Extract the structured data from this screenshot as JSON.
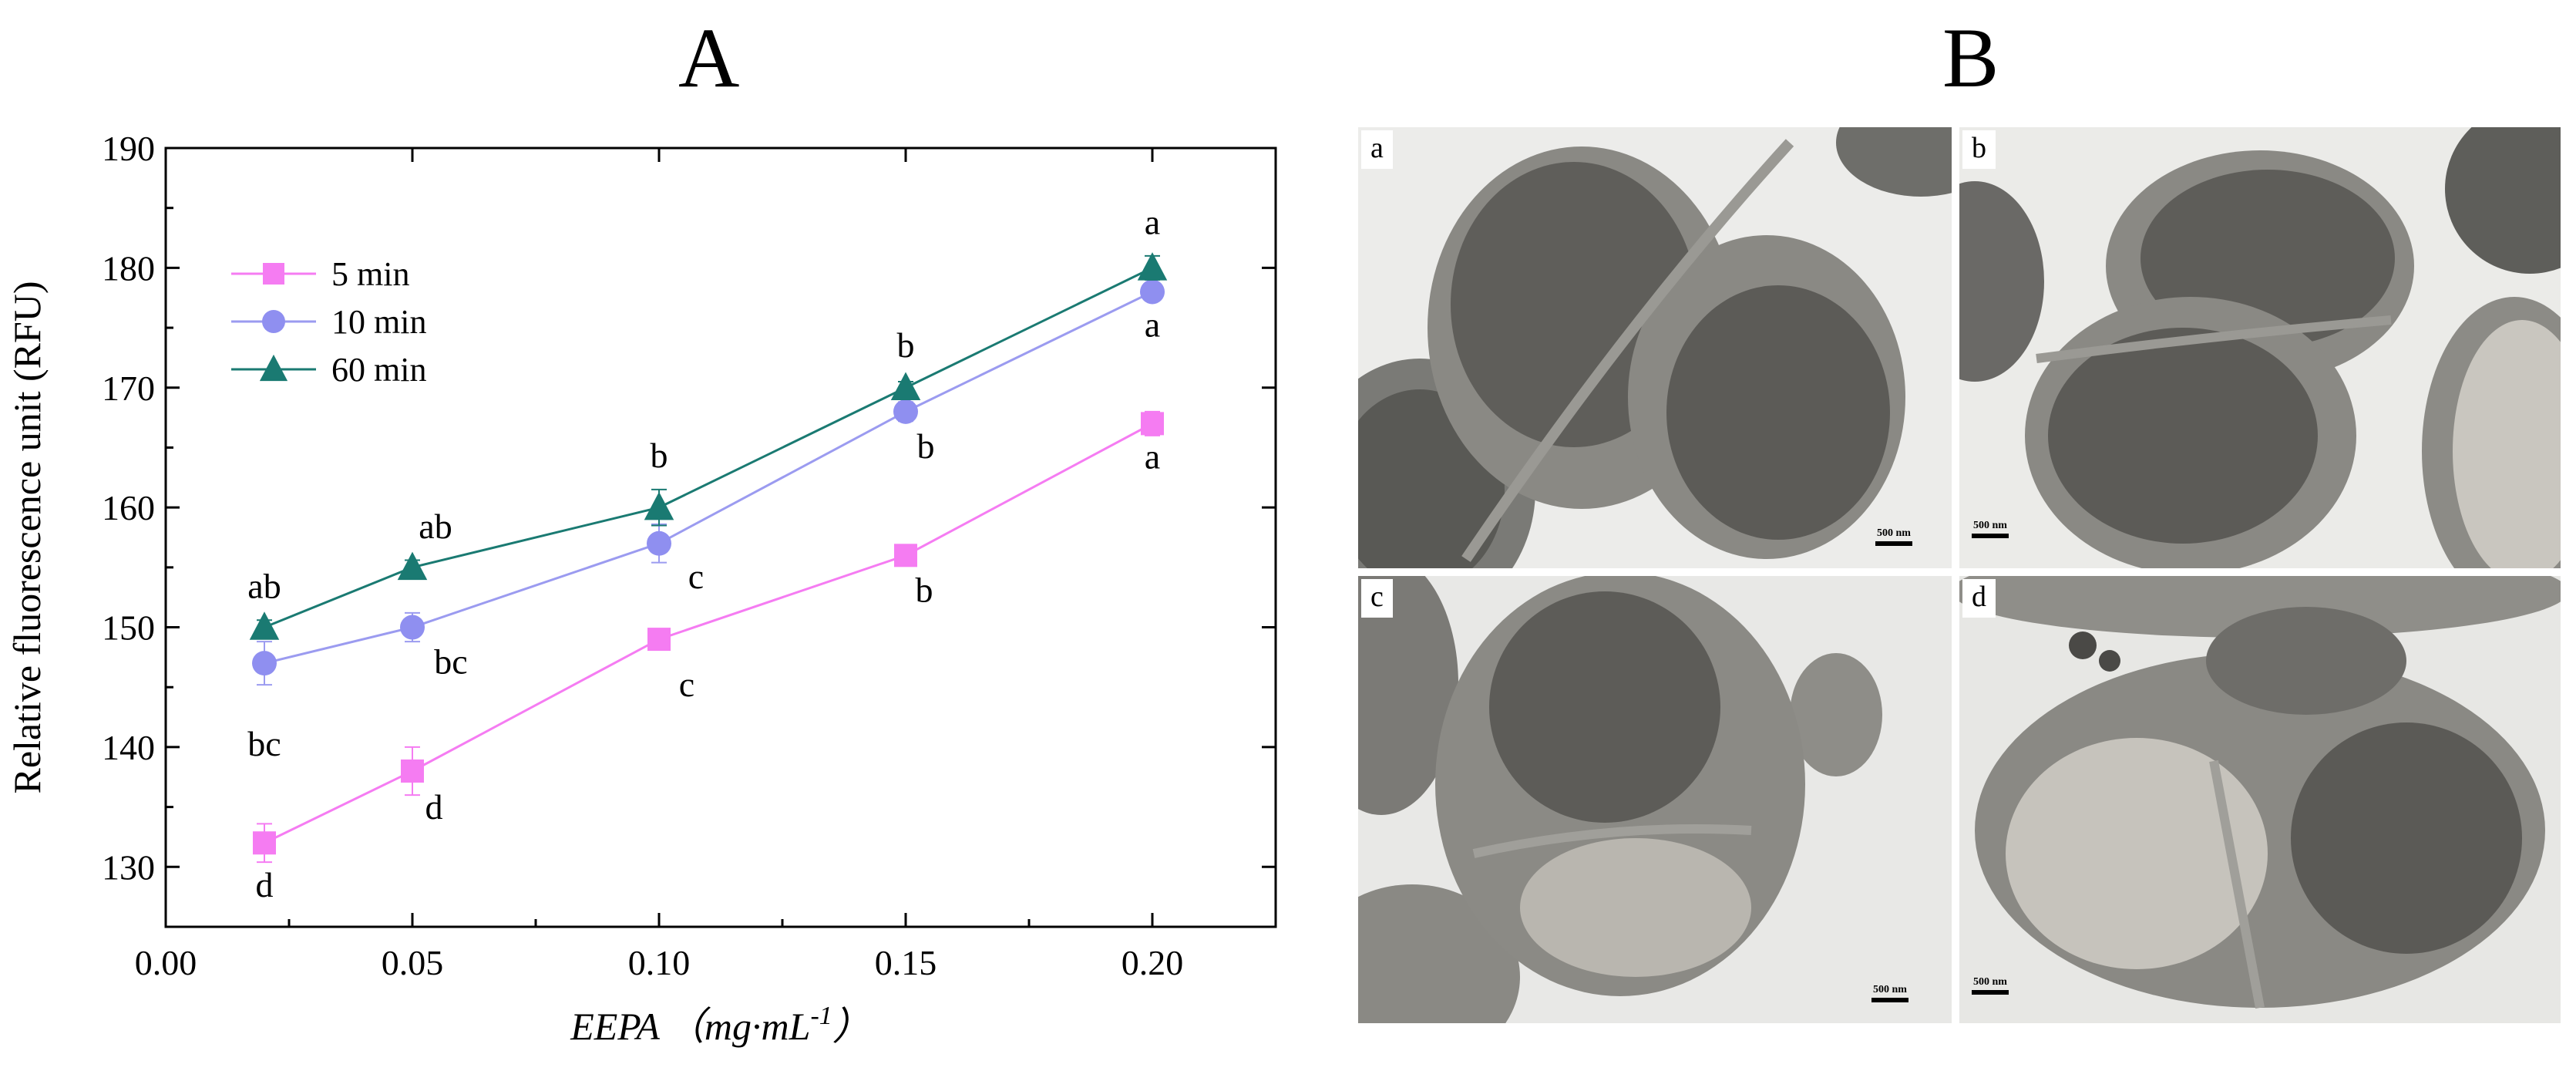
{
  "panels": {
    "left_letter": "A",
    "right_letter": "B"
  },
  "chart_data": {
    "type": "line",
    "xlabel_main": "EEPA",
    "xlabel_unit": "（mg·mL",
    "xlabel_exp": "-1",
    "xlabel_close": "）",
    "ylabel": "Relative fluorescence unit (RFU)",
    "xlim": [
      0.0,
      0.225
    ],
    "ylim": [
      125,
      190
    ],
    "xticks": [
      "0.00",
      "0.05",
      "0.10",
      "0.15",
      "0.20"
    ],
    "xtick_values": [
      0.0,
      0.05,
      0.1,
      0.15,
      0.2
    ],
    "yticks": [
      "130",
      "140",
      "150",
      "160",
      "170",
      "180",
      "190"
    ],
    "ytick_values": [
      130,
      140,
      150,
      160,
      170,
      180,
      190
    ],
    "x": [
      0.02,
      0.05,
      0.1,
      0.15,
      0.2
    ],
    "legend_position": "top-left",
    "series": [
      {
        "name": "5 min",
        "marker": "square",
        "color": "#f57cf2",
        "marker_color": "#f57cf2",
        "values": [
          132,
          138,
          149,
          156,
          167
        ],
        "errors": [
          1.6,
          2.0,
          0.6,
          0.5,
          1.0
        ],
        "letters": [
          "d",
          "d",
          "c",
          "b",
          "a"
        ],
        "letter_pos": [
          "below",
          "below",
          "below",
          "below",
          "below"
        ]
      },
      {
        "name": "10 min",
        "marker": "circle",
        "color": "#9b9bf0",
        "marker_color": "#8f8ff0",
        "values": [
          147,
          150,
          157,
          168,
          178
        ],
        "errors": [
          1.8,
          1.2,
          1.6,
          0.8,
          0.6
        ],
        "letters": [
          "bc",
          "bc",
          "c",
          "b",
          "a"
        ],
        "letter_pos": [
          "below",
          "below",
          "below",
          "below",
          "below"
        ]
      },
      {
        "name": "60 min",
        "marker": "triangle",
        "color": "#1a7a72",
        "marker_color": "#1a7a72",
        "values": [
          150,
          155,
          160,
          170,
          180
        ],
        "errors": [
          0.6,
          0.6,
          1.5,
          0.5,
          1.0
        ],
        "letters": [
          "ab",
          "ab",
          "b",
          "b",
          "a"
        ],
        "letter_pos": [
          "above",
          "above",
          "above",
          "above",
          "above"
        ]
      }
    ]
  },
  "micrographs": [
    {
      "tag": "a",
      "scale": "500 nm"
    },
    {
      "tag": "b",
      "scale": "500 nm"
    },
    {
      "tag": "c",
      "scale": "500 nm"
    },
    {
      "tag": "d",
      "scale": "500 nm"
    }
  ]
}
